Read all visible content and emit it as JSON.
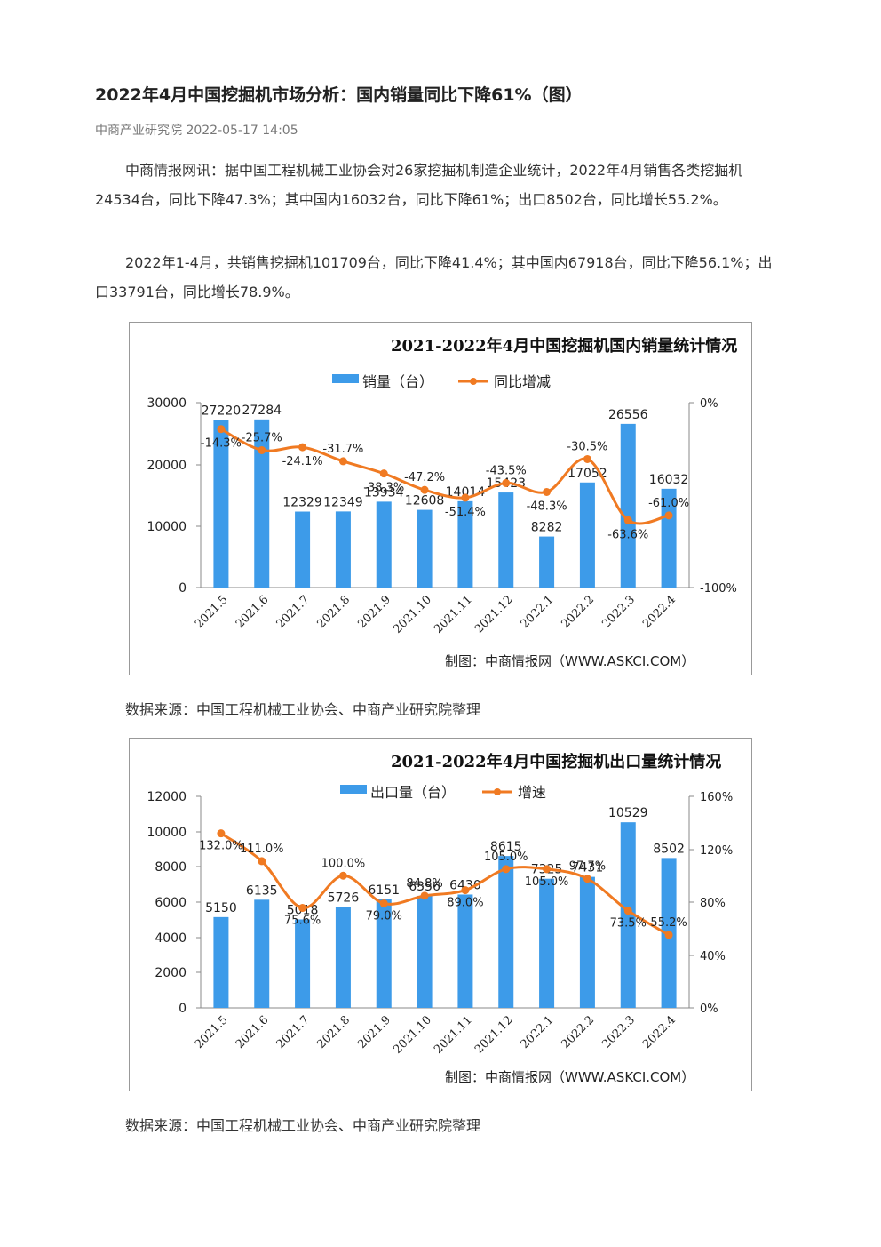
{
  "article": {
    "title": "2022年4月中国挖掘机市场分析：国内销量同比下降61%（图）",
    "meta": "中商产业研究院 2022-05-17 14:05",
    "para1": "中商情报网讯：据中国工程机械工业协会对26家挖掘机制造企业统计，2022年4月销售各类挖掘机24534台，同比下降47.3%；其中国内16032台，同比下降61%；出口8502台，同比增长55.2%。",
    "para2": "2022年1-4月，共销售挖掘机101709台，同比下降41.4%；其中国内67918台，同比下降56.1%；出口33791台，同比增长78.9%。",
    "source1": "数据来源：中国工程机械工业协会、中商产业研究院整理",
    "source2": "数据来源：中国工程机械工业协会、中商产业研究院整理"
  },
  "colors": {
    "bar": "#3d9be9",
    "line": "#f07a22"
  },
  "chart_data": [
    {
      "type": "bar",
      "title": "2021-2022年4月中国挖掘机国内销量统计情况",
      "credit": "制图：中商情报网（WWW.ASKCI.COM）",
      "categories": [
        "2021.5",
        "2021.6",
        "2021.7",
        "2021.8",
        "2021.9",
        "2021.10",
        "2021.11",
        "2021.12",
        "2022.1",
        "2022.2",
        "2022.3",
        "2022.4"
      ],
      "series": [
        {
          "name": "销量（台）",
          "values": [
            27220,
            27284,
            12329,
            12349,
            13934,
            12608,
            14014,
            15423,
            8282,
            17052,
            26556,
            16032
          ],
          "labels": [
            "27220",
            "27284",
            "12329",
            "12349",
            "13934",
            "12608",
            "14014",
            "15423",
            "8282",
            "17052",
            "26556",
            "16032"
          ]
        },
        {
          "name": "同比增减",
          "type": "line",
          "values": [
            -14.3,
            -25.7,
            -24.1,
            -31.7,
            -38.3,
            -47.2,
            -51.4,
            -43.5,
            -48.3,
            -30.5,
            -63.6,
            -61.0
          ],
          "labels": [
            "-14.3%",
            "-25.7%",
            "-24.1%",
            "-31.7%",
            "-38.3%",
            "-47.2%",
            "-51.4%",
            "-43.5%",
            "-48.3%",
            "-30.5%",
            "-63.6%",
            "-61.0%"
          ]
        }
      ],
      "yleft_ticks": [
        "30000",
        "20000",
        "10000",
        "0"
      ],
      "yleft_range": [
        0,
        30000
      ],
      "yright_ticks": [
        "0%",
        "-100%"
      ],
      "yright_range": [
        -100,
        0
      ],
      "legend": "top"
    },
    {
      "type": "bar",
      "title": "2021-2022年4月中国挖掘机出口量统计情况",
      "credit": "制图：中商情报网（WWW.ASKCI.COM）",
      "categories": [
        "2021.5",
        "2021.6",
        "2021.7",
        "2021.8",
        "2021.9",
        "2021.10",
        "2021.11",
        "2021.12",
        "2022.1",
        "2022.2",
        "2022.3",
        "2022.4"
      ],
      "series": [
        {
          "name": "出口量（台）",
          "values": [
            5150,
            6135,
            5018,
            5726,
            6151,
            6356,
            6430,
            8615,
            7325,
            7431,
            10529,
            8502
          ],
          "labels": [
            "5150",
            "6135",
            "5018",
            "5726",
            "6151",
            "6356",
            "6430",
            "8615",
            "7325",
            "7431",
            "10529",
            "8502"
          ]
        },
        {
          "name": "增速",
          "type": "line",
          "values": [
            132.0,
            111.0,
            75.6,
            100.0,
            79.0,
            84.8,
            89.0,
            105.0,
            105.0,
            97.7,
            73.5,
            55.2
          ],
          "labels": [
            "132.0%",
            "111.0%",
            "75.6%",
            "100.0%",
            "79.0%",
            "84.8%",
            "89.0%",
            "105.0%",
            "105.0%",
            "97.7%",
            "73.5%",
            "55.2%"
          ]
        }
      ],
      "yleft_ticks": [
        "12000",
        "10000",
        "8000",
        "6000",
        "4000",
        "2000",
        "0"
      ],
      "yleft_range": [
        0,
        12000
      ],
      "yright_ticks": [
        "160%",
        "120%",
        "80%",
        "40%",
        "0%"
      ],
      "yright_range": [
        0,
        160
      ],
      "legend": "top"
    }
  ]
}
